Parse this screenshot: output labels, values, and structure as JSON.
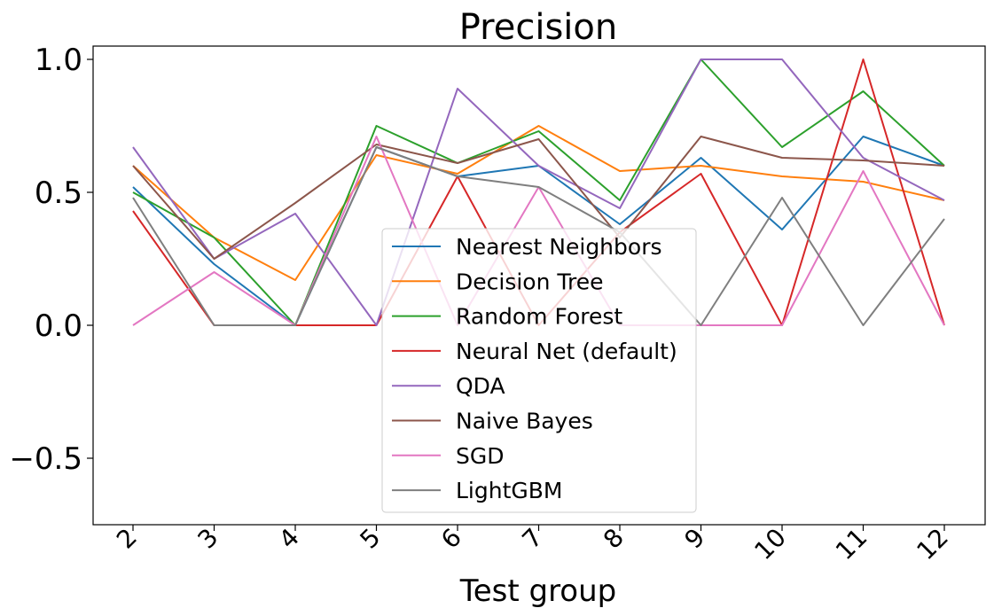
{
  "chart_data": {
    "type": "line",
    "title": "Precision",
    "xlabel": "Test group",
    "ylabel": "",
    "categories": [
      "2",
      "3",
      "4",
      "5",
      "6",
      "7",
      "8",
      "9",
      "10",
      "11",
      "12"
    ],
    "ylim": [
      -0.75,
      1.05
    ],
    "yticks": [
      -0.5,
      0.0,
      0.5,
      1.0
    ],
    "ytick_labels": [
      "−0.5",
      "0.0",
      "0.5",
      "1.0"
    ],
    "grid": false,
    "legend_position": "lower center",
    "series": [
      {
        "name": "Nearest Neighbors",
        "color": "#1f77b4",
        "values": [
          0.52,
          0.23,
          0.0,
          0.67,
          0.56,
          0.6,
          0.38,
          0.63,
          0.36,
          0.71,
          0.6
        ]
      },
      {
        "name": "Decision Tree",
        "color": "#ff7f0e",
        "values": [
          0.6,
          0.33,
          0.17,
          0.64,
          0.57,
          0.75,
          0.58,
          0.6,
          0.56,
          0.54,
          0.47
        ]
      },
      {
        "name": "Random Forest",
        "color": "#2ca02c",
        "values": [
          0.5,
          0.33,
          0.0,
          0.75,
          0.61,
          0.73,
          0.47,
          1.0,
          0.67,
          0.88,
          0.6
        ]
      },
      {
        "name": "Neural Net (default)",
        "color": "#d62728",
        "values": [
          0.43,
          0.0,
          0.0,
          0.0,
          0.56,
          0.0,
          0.35,
          0.57,
          0.0,
          1.0,
          0.0
        ]
      },
      {
        "name": "QDA",
        "color": "#9467bd",
        "values": [
          0.67,
          0.25,
          0.42,
          0.0,
          0.89,
          0.6,
          0.44,
          1.0,
          1.0,
          0.63,
          0.47
        ]
      },
      {
        "name": "Naive Bayes",
        "color": "#8c564b",
        "values": [
          0.6,
          0.25,
          0.46,
          0.68,
          0.61,
          0.7,
          0.33,
          0.71,
          0.63,
          0.62,
          0.6
        ]
      },
      {
        "name": "SGD",
        "color": "#e377c2",
        "values": [
          0.0,
          0.2,
          0.0,
          0.71,
          0.0,
          0.52,
          0.0,
          0.0,
          0.0,
          0.58,
          0.0
        ]
      },
      {
        "name": "LightGBM",
        "color": "#7f7f7f",
        "values": [
          0.48,
          0.0,
          0.0,
          0.67,
          0.56,
          0.52,
          0.35,
          0.0,
          0.48,
          0.0,
          0.4
        ]
      }
    ]
  }
}
